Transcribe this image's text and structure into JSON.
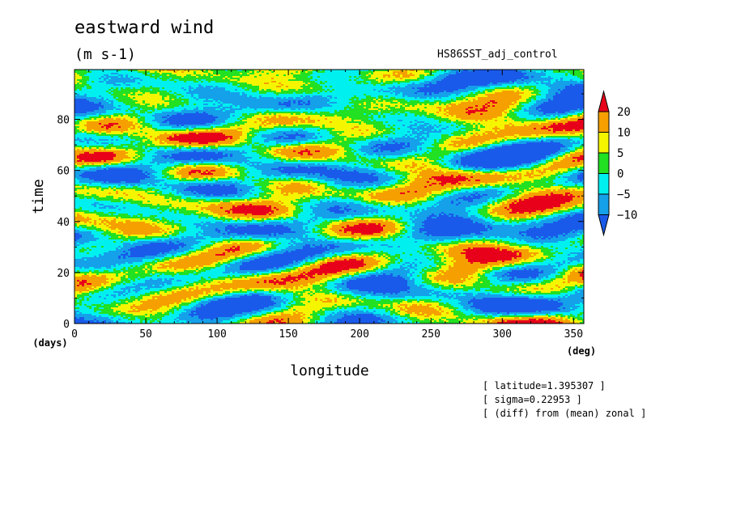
{
  "header": {
    "title": "eastward wind",
    "units": "(m s-1)",
    "run_name": "HS86SST_adj_control"
  },
  "notes": [
    "[ latitude=1.395307 ]",
    "[ sigma=0.22953 ]",
    "[ (diff) from (mean) zonal ]"
  ],
  "chart_data": {
    "type": "heatmap",
    "title": "eastward wind",
    "subtitle": "(m s-1)",
    "xlabel": "longitude",
    "ylabel": "time",
    "x_unit": "(deg)",
    "y_unit": "(days)",
    "xlim": [
      0,
      357.2
    ],
    "ylim": [
      0,
      99.5
    ],
    "x_ticks": [
      0,
      50,
      100,
      150,
      200,
      250,
      300,
      350
    ],
    "y_ticks": [
      0,
      20,
      40,
      60,
      80
    ],
    "colorbar": {
      "labels": [
        20,
        10,
        5,
        0,
        -5,
        -10
      ],
      "levels": [
        {
          "range": "above 20",
          "color": "#e8001a"
        },
        {
          "range": "10 to 20",
          "color": "#f5a000"
        },
        {
          "range": "5 to 10",
          "color": "#f5f500"
        },
        {
          "range": "0 to 5",
          "color": "#22e022"
        },
        {
          "range": "-5 to 0",
          "color": "#00f0f0"
        },
        {
          "range": "-10 to -5",
          "color": "#15a0ea"
        },
        {
          "range": "below -10",
          "color": "#1a5aea"
        }
      ]
    }
  }
}
